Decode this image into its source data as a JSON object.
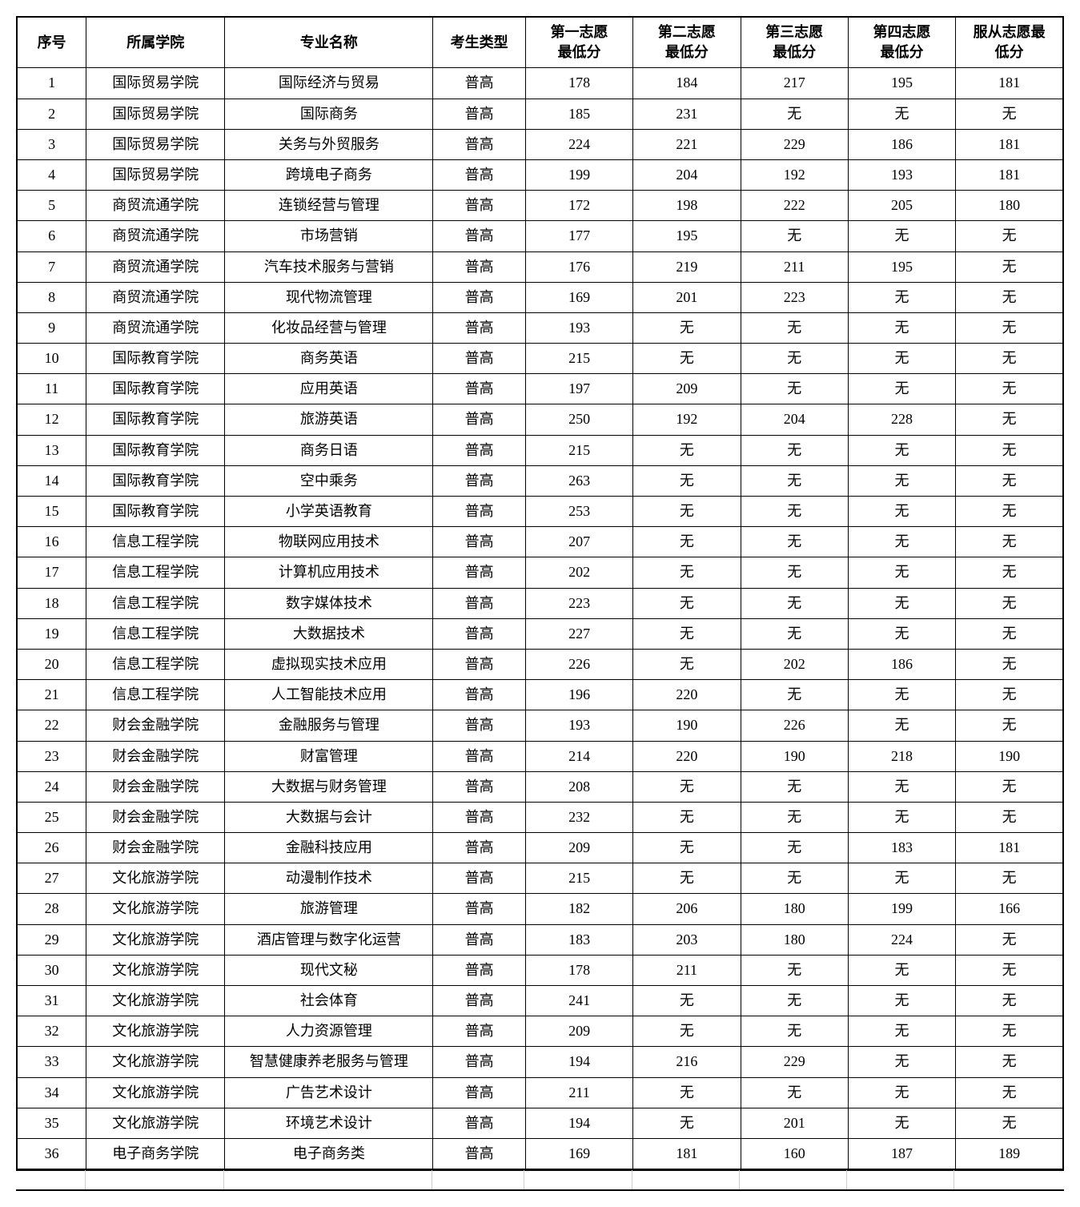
{
  "table": {
    "columns": [
      "序号",
      "所属学院",
      "专业名称",
      "考生类型",
      "第一志愿\n最低分",
      "第二志愿\n最低分",
      "第三志愿\n最低分",
      "第四志愿\n最低分",
      "服从志愿最\n低分"
    ],
    "column_widths": [
      "6%",
      "12%",
      "18%",
      "8%",
      "9.3%",
      "9.3%",
      "9.3%",
      "9.3%",
      "9.5%"
    ],
    "header_fontsize": 18,
    "body_fontsize": 18,
    "border_color": "#000000",
    "background_color": "#ffffff",
    "text_color": "#000000",
    "rows": [
      [
        "1",
        "国际贸易学院",
        "国际经济与贸易",
        "普高",
        "178",
        "184",
        "217",
        "195",
        "181"
      ],
      [
        "2",
        "国际贸易学院",
        "国际商务",
        "普高",
        "185",
        "231",
        "无",
        "无",
        "无"
      ],
      [
        "3",
        "国际贸易学院",
        "关务与外贸服务",
        "普高",
        "224",
        "221",
        "229",
        "186",
        "181"
      ],
      [
        "4",
        "国际贸易学院",
        "跨境电子商务",
        "普高",
        "199",
        "204",
        "192",
        "193",
        "181"
      ],
      [
        "5",
        "商贸流通学院",
        "连锁经营与管理",
        "普高",
        "172",
        "198",
        "222",
        "205",
        "180"
      ],
      [
        "6",
        "商贸流通学院",
        "市场营销",
        "普高",
        "177",
        "195",
        "无",
        "无",
        "无"
      ],
      [
        "7",
        "商贸流通学院",
        "汽车技术服务与营销",
        "普高",
        "176",
        "219",
        "211",
        "195",
        "无"
      ],
      [
        "8",
        "商贸流通学院",
        "现代物流管理",
        "普高",
        "169",
        "201",
        "223",
        "无",
        "无"
      ],
      [
        "9",
        "商贸流通学院",
        "化妆品经营与管理",
        "普高",
        "193",
        "无",
        "无",
        "无",
        "无"
      ],
      [
        "10",
        "国际教育学院",
        "商务英语",
        "普高",
        "215",
        "无",
        "无",
        "无",
        "无"
      ],
      [
        "11",
        "国际教育学院",
        "应用英语",
        "普高",
        "197",
        "209",
        "无",
        "无",
        "无"
      ],
      [
        "12",
        "国际教育学院",
        "旅游英语",
        "普高",
        "250",
        "192",
        "204",
        "228",
        "无"
      ],
      [
        "13",
        "国际教育学院",
        "商务日语",
        "普高",
        "215",
        "无",
        "无",
        "无",
        "无"
      ],
      [
        "14",
        "国际教育学院",
        "空中乘务",
        "普高",
        "263",
        "无",
        "无",
        "无",
        "无"
      ],
      [
        "15",
        "国际教育学院",
        "小学英语教育",
        "普高",
        "253",
        "无",
        "无",
        "无",
        "无"
      ],
      [
        "16",
        "信息工程学院",
        "物联网应用技术",
        "普高",
        "207",
        "无",
        "无",
        "无",
        "无"
      ],
      [
        "17",
        "信息工程学院",
        "计算机应用技术",
        "普高",
        "202",
        "无",
        "无",
        "无",
        "无"
      ],
      [
        "18",
        "信息工程学院",
        "数字媒体技术",
        "普高",
        "223",
        "无",
        "无",
        "无",
        "无"
      ],
      [
        "19",
        "信息工程学院",
        "大数据技术",
        "普高",
        "227",
        "无",
        "无",
        "无",
        "无"
      ],
      [
        "20",
        "信息工程学院",
        "虚拟现实技术应用",
        "普高",
        "226",
        "无",
        "202",
        "186",
        "无"
      ],
      [
        "21",
        "信息工程学院",
        "人工智能技术应用",
        "普高",
        "196",
        "220",
        "无",
        "无",
        "无"
      ],
      [
        "22",
        "财会金融学院",
        "金融服务与管理",
        "普高",
        "193",
        "190",
        "226",
        "无",
        "无"
      ],
      [
        "23",
        "财会金融学院",
        "财富管理",
        "普高",
        "214",
        "220",
        "190",
        "218",
        "190"
      ],
      [
        "24",
        "财会金融学院",
        "大数据与财务管理",
        "普高",
        "208",
        "无",
        "无",
        "无",
        "无"
      ],
      [
        "25",
        "财会金融学院",
        "大数据与会计",
        "普高",
        "232",
        "无",
        "无",
        "无",
        "无"
      ],
      [
        "26",
        "财会金融学院",
        "金融科技应用",
        "普高",
        "209",
        "无",
        "无",
        "183",
        "181"
      ],
      [
        "27",
        "文化旅游学院",
        "动漫制作技术",
        "普高",
        "215",
        "无",
        "无",
        "无",
        "无"
      ],
      [
        "28",
        "文化旅游学院",
        "旅游管理",
        "普高",
        "182",
        "206",
        "180",
        "199",
        "166"
      ],
      [
        "29",
        "文化旅游学院",
        "酒店管理与数字化运营",
        "普高",
        "183",
        "203",
        "180",
        "224",
        "无"
      ],
      [
        "30",
        "文化旅游学院",
        "现代文秘",
        "普高",
        "178",
        "211",
        "无",
        "无",
        "无"
      ],
      [
        "31",
        "文化旅游学院",
        "社会体育",
        "普高",
        "241",
        "无",
        "无",
        "无",
        "无"
      ],
      [
        "32",
        "文化旅游学院",
        "人力资源管理",
        "普高",
        "209",
        "无",
        "无",
        "无",
        "无"
      ],
      [
        "33",
        "文化旅游学院",
        "智慧健康养老服务与管理",
        "普高",
        "194",
        "216",
        "229",
        "无",
        "无"
      ],
      [
        "34",
        "文化旅游学院",
        "广告艺术设计",
        "普高",
        "211",
        "无",
        "无",
        "无",
        "无"
      ],
      [
        "35",
        "文化旅游学院",
        "环境艺术设计",
        "普高",
        "194",
        "无",
        "201",
        "无",
        "无"
      ],
      [
        "36",
        "电子商务学院",
        "电子商务类",
        "普高",
        "169",
        "181",
        "160",
        "187",
        "189"
      ]
    ]
  }
}
